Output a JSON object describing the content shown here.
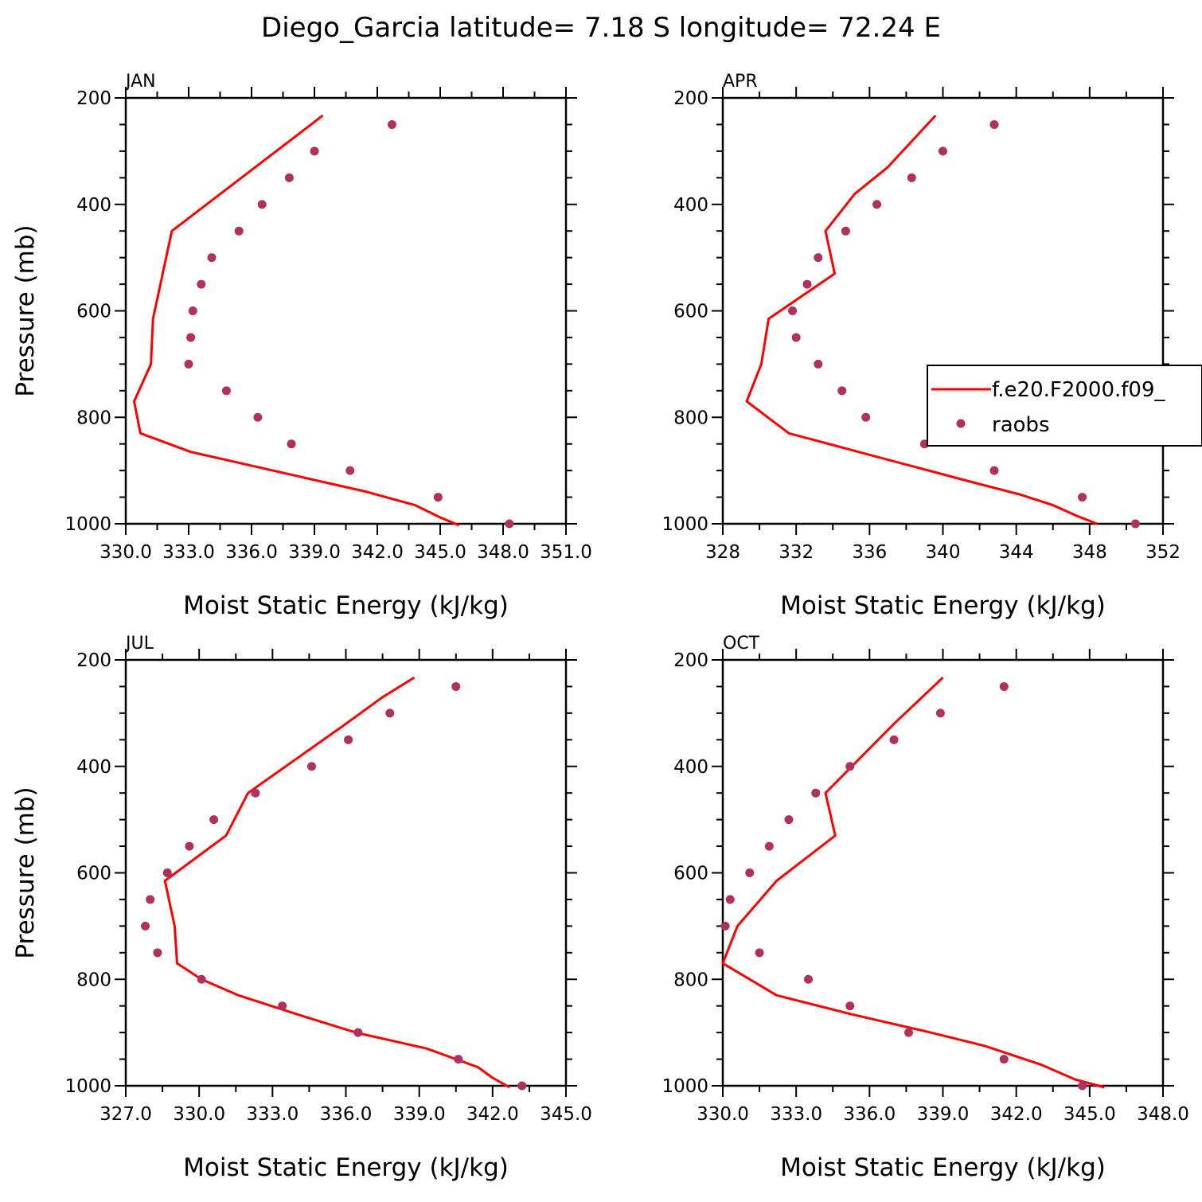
{
  "title": "Diego_Garcia  latitude= 7.18 S longitude= 72.24 E",
  "colors": {
    "model": "#ff0000",
    "obs": "#b03060"
  },
  "chart_data": [
    {
      "type": "scatter",
      "panel": "JAN",
      "xlabel": "Moist Static Energy (kJ/kg)",
      "ylabel": "Pressure (mb)",
      "xlim": [
        330.0,
        351.0
      ],
      "ylim": [
        200,
        1000
      ],
      "y_reversed": true,
      "x_ticks": [
        "330.0",
        "333.0",
        "336.0",
        "339.0",
        "342.0",
        "345.0",
        "348.0",
        "351.0"
      ],
      "x_tick_values": [
        330.0,
        333.0,
        336.0,
        339.0,
        342.0,
        345.0,
        348.0,
        351.0
      ],
      "y_ticks": [
        200,
        400,
        600,
        800,
        1000
      ],
      "series": [
        {
          "name": "f.e20.F2000.f09_",
          "kind": "line",
          "points": [
            [
              339.4,
              233
            ],
            [
              332.2,
              450
            ],
            [
              331.3,
              615
            ],
            [
              331.2,
              700
            ],
            [
              330.4,
              770
            ],
            [
              330.7,
              830
            ],
            [
              333.1,
              865
            ],
            [
              341.5,
              940
            ],
            [
              343.8,
              965
            ],
            [
              345.0,
              988
            ],
            [
              345.9,
              1003
            ]
          ]
        },
        {
          "name": "raobs",
          "kind": "markers",
          "points": [
            [
              342.7,
              250
            ],
            [
              339.0,
              300
            ],
            [
              337.8,
              350
            ],
            [
              336.5,
              400
            ],
            [
              335.4,
              450
            ],
            [
              334.1,
              500
            ],
            [
              333.6,
              550
            ],
            [
              333.2,
              600
            ],
            [
              333.1,
              650
            ],
            [
              333.0,
              700
            ],
            [
              334.8,
              750
            ],
            [
              336.3,
              800
            ],
            [
              337.9,
              850
            ],
            [
              340.7,
              900
            ],
            [
              344.9,
              950
            ],
            [
              348.3,
              1000
            ]
          ]
        }
      ]
    },
    {
      "type": "scatter",
      "panel": "APR",
      "xlabel": "Moist Static Energy (kJ/kg)",
      "ylabel": "",
      "xlim": [
        328,
        352
      ],
      "ylim": [
        200,
        1000
      ],
      "y_reversed": true,
      "x_ticks": [
        "328",
        "332",
        "336",
        "340",
        "344",
        "348",
        "352"
      ],
      "x_tick_values": [
        328,
        332,
        336,
        340,
        344,
        348,
        352
      ],
      "y_ticks": [
        200,
        400,
        600,
        800,
        1000
      ],
      "legend": {
        "position": "right",
        "entries": [
          "f.e20.F2000.f09_",
          "raobs"
        ]
      },
      "series": [
        {
          "name": "f.e20.F2000.f09_",
          "kind": "line",
          "points": [
            [
              339.6,
              233
            ],
            [
              337.0,
              330
            ],
            [
              335.2,
              380
            ],
            [
              333.6,
              450
            ],
            [
              334.1,
              530
            ],
            [
              330.5,
              615
            ],
            [
              330.1,
              700
            ],
            [
              329.3,
              770
            ],
            [
              331.6,
              830
            ],
            [
              335.4,
              865
            ],
            [
              341.4,
              920
            ],
            [
              344.2,
              945
            ],
            [
              346.0,
              965
            ],
            [
              347.3,
              985
            ],
            [
              348.4,
              1000
            ]
          ]
        },
        {
          "name": "raobs",
          "kind": "markers",
          "points": [
            [
              342.8,
              250
            ],
            [
              340.0,
              300
            ],
            [
              338.3,
              350
            ],
            [
              336.4,
              400
            ],
            [
              334.7,
              450
            ],
            [
              333.2,
              500
            ],
            [
              332.6,
              550
            ],
            [
              331.8,
              600
            ],
            [
              332.0,
              650
            ],
            [
              333.2,
              700
            ],
            [
              334.5,
              750
            ],
            [
              335.8,
              800
            ],
            [
              339.0,
              850
            ],
            [
              342.8,
              900
            ],
            [
              347.6,
              950
            ],
            [
              350.5,
              1000
            ]
          ]
        }
      ]
    },
    {
      "type": "scatter",
      "panel": "JUL",
      "xlabel": "Moist Static Energy (kJ/kg)",
      "ylabel": "Pressure (mb)",
      "xlim": [
        327.0,
        345.0
      ],
      "ylim": [
        200,
        1000
      ],
      "y_reversed": true,
      "x_ticks": [
        "327.0",
        "330.0",
        "333.0",
        "336.0",
        "339.0",
        "342.0",
        "345.0"
      ],
      "x_tick_values": [
        327.0,
        330.0,
        333.0,
        336.0,
        339.0,
        342.0,
        345.0
      ],
      "y_ticks": [
        200,
        400,
        600,
        800,
        1000
      ],
      "series": [
        {
          "name": "f.e20.F2000.f09_",
          "kind": "line",
          "points": [
            [
              338.8,
              233
            ],
            [
              337.5,
              270
            ],
            [
              336.0,
              320
            ],
            [
              332.0,
              450
            ],
            [
              331.1,
              530
            ],
            [
              328.6,
              615
            ],
            [
              329.0,
              700
            ],
            [
              329.1,
              770
            ],
            [
              330.1,
              800
            ],
            [
              331.6,
              830
            ],
            [
              334.3,
              870
            ],
            [
              336.4,
              900
            ],
            [
              339.3,
              930
            ],
            [
              341.4,
              965
            ],
            [
              342.0,
              985
            ],
            [
              342.7,
              1003
            ]
          ]
        },
        {
          "name": "raobs",
          "kind": "markers",
          "points": [
            [
              340.5,
              250
            ],
            [
              337.8,
              300
            ],
            [
              336.1,
              350
            ],
            [
              334.6,
              400
            ],
            [
              332.3,
              450
            ],
            [
              330.6,
              500
            ],
            [
              329.6,
              550
            ],
            [
              328.7,
              600
            ],
            [
              328.0,
              650
            ],
            [
              327.8,
              700
            ],
            [
              328.3,
              750
            ],
            [
              330.1,
              800
            ],
            [
              333.4,
              850
            ],
            [
              336.5,
              900
            ],
            [
              340.6,
              950
            ],
            [
              343.2,
              1000
            ]
          ]
        }
      ]
    },
    {
      "type": "scatter",
      "panel": "OCT",
      "xlabel": "Moist Static Energy (kJ/kg)",
      "ylabel": "",
      "xlim": [
        330.0,
        348.0
      ],
      "ylim": [
        200,
        1000
      ],
      "y_reversed": true,
      "x_ticks": [
        "330.0",
        "333.0",
        "336.0",
        "339.0",
        "342.0",
        "345.0",
        "348.0"
      ],
      "x_tick_values": [
        330.0,
        333.0,
        336.0,
        339.0,
        342.0,
        345.0,
        348.0
      ],
      "y_ticks": [
        200,
        400,
        600,
        800,
        1000
      ],
      "series": [
        {
          "name": "f.e20.F2000.f09_",
          "kind": "line",
          "points": [
            [
              339.0,
              233
            ],
            [
              337.0,
              320
            ],
            [
              334.2,
              450
            ],
            [
              334.6,
              530
            ],
            [
              332.2,
              615
            ],
            [
              330.6,
              700
            ],
            [
              330.0,
              770
            ],
            [
              332.2,
              830
            ],
            [
              335.2,
              865
            ],
            [
              338.5,
              900
            ],
            [
              340.7,
              925
            ],
            [
              343.0,
              960
            ],
            [
              344.4,
              988
            ],
            [
              345.6,
              1003
            ]
          ]
        },
        {
          "name": "raobs",
          "kind": "markers",
          "points": [
            [
              341.5,
              250
            ],
            [
              338.9,
              300
            ],
            [
              337.0,
              350
            ],
            [
              335.2,
              400
            ],
            [
              333.8,
              450
            ],
            [
              332.7,
              500
            ],
            [
              331.9,
              550
            ],
            [
              331.1,
              600
            ],
            [
              330.3,
              650
            ],
            [
              330.1,
              700
            ],
            [
              331.5,
              750
            ],
            [
              333.5,
              800
            ],
            [
              335.2,
              850
            ],
            [
              337.6,
              900
            ],
            [
              341.5,
              950
            ],
            [
              344.7,
              1000
            ]
          ]
        }
      ]
    }
  ]
}
